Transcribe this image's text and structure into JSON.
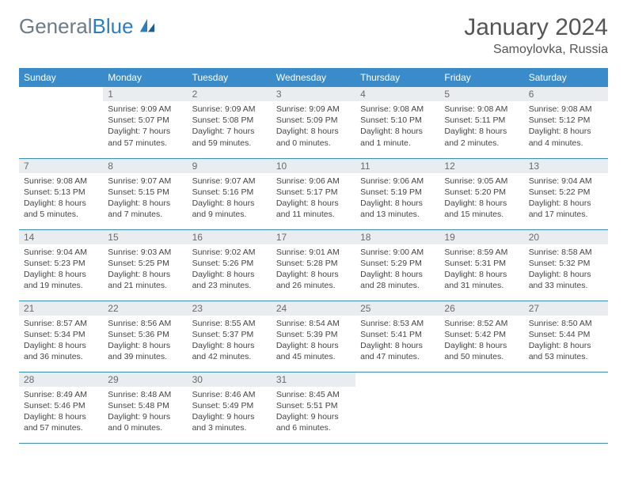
{
  "brand": {
    "general": "General",
    "blue": "Blue"
  },
  "title": {
    "month": "January 2024",
    "location": "Samoylovka, Russia"
  },
  "style": {
    "header_bg": "#3a8bc9",
    "header_fg": "#ffffff",
    "daynum_bg": "#e9edf0",
    "daynum_fg": "#6a6a6a",
    "border_color": "#3a8bc9",
    "body_bg": "#ffffff",
    "text_color": "#444",
    "title_color": "#555",
    "logo_gray": "#6b7b8a",
    "logo_blue": "#2b7fbf",
    "title_fontsize": 30,
    "location_fontsize": 16,
    "header_fontsize": 12,
    "daynum_fontsize": 12,
    "body_fontsize": 10.5
  },
  "weekdays": [
    "Sunday",
    "Monday",
    "Tuesday",
    "Wednesday",
    "Thursday",
    "Friday",
    "Saturday"
  ],
  "weeks": [
    [
      null,
      {
        "n": "1",
        "sunrise": "Sunrise: 9:09 AM",
        "sunset": "Sunset: 5:07 PM",
        "day1": "Daylight: 7 hours",
        "day2": "and 57 minutes."
      },
      {
        "n": "2",
        "sunrise": "Sunrise: 9:09 AM",
        "sunset": "Sunset: 5:08 PM",
        "day1": "Daylight: 7 hours",
        "day2": "and 59 minutes."
      },
      {
        "n": "3",
        "sunrise": "Sunrise: 9:09 AM",
        "sunset": "Sunset: 5:09 PM",
        "day1": "Daylight: 8 hours",
        "day2": "and 0 minutes."
      },
      {
        "n": "4",
        "sunrise": "Sunrise: 9:08 AM",
        "sunset": "Sunset: 5:10 PM",
        "day1": "Daylight: 8 hours",
        "day2": "and 1 minute."
      },
      {
        "n": "5",
        "sunrise": "Sunrise: 9:08 AM",
        "sunset": "Sunset: 5:11 PM",
        "day1": "Daylight: 8 hours",
        "day2": "and 2 minutes."
      },
      {
        "n": "6",
        "sunrise": "Sunrise: 9:08 AM",
        "sunset": "Sunset: 5:12 PM",
        "day1": "Daylight: 8 hours",
        "day2": "and 4 minutes."
      }
    ],
    [
      {
        "n": "7",
        "sunrise": "Sunrise: 9:08 AM",
        "sunset": "Sunset: 5:13 PM",
        "day1": "Daylight: 8 hours",
        "day2": "and 5 minutes."
      },
      {
        "n": "8",
        "sunrise": "Sunrise: 9:07 AM",
        "sunset": "Sunset: 5:15 PM",
        "day1": "Daylight: 8 hours",
        "day2": "and 7 minutes."
      },
      {
        "n": "9",
        "sunrise": "Sunrise: 9:07 AM",
        "sunset": "Sunset: 5:16 PM",
        "day1": "Daylight: 8 hours",
        "day2": "and 9 minutes."
      },
      {
        "n": "10",
        "sunrise": "Sunrise: 9:06 AM",
        "sunset": "Sunset: 5:17 PM",
        "day1": "Daylight: 8 hours",
        "day2": "and 11 minutes."
      },
      {
        "n": "11",
        "sunrise": "Sunrise: 9:06 AM",
        "sunset": "Sunset: 5:19 PM",
        "day1": "Daylight: 8 hours",
        "day2": "and 13 minutes."
      },
      {
        "n": "12",
        "sunrise": "Sunrise: 9:05 AM",
        "sunset": "Sunset: 5:20 PM",
        "day1": "Daylight: 8 hours",
        "day2": "and 15 minutes."
      },
      {
        "n": "13",
        "sunrise": "Sunrise: 9:04 AM",
        "sunset": "Sunset: 5:22 PM",
        "day1": "Daylight: 8 hours",
        "day2": "and 17 minutes."
      }
    ],
    [
      {
        "n": "14",
        "sunrise": "Sunrise: 9:04 AM",
        "sunset": "Sunset: 5:23 PM",
        "day1": "Daylight: 8 hours",
        "day2": "and 19 minutes."
      },
      {
        "n": "15",
        "sunrise": "Sunrise: 9:03 AM",
        "sunset": "Sunset: 5:25 PM",
        "day1": "Daylight: 8 hours",
        "day2": "and 21 minutes."
      },
      {
        "n": "16",
        "sunrise": "Sunrise: 9:02 AM",
        "sunset": "Sunset: 5:26 PM",
        "day1": "Daylight: 8 hours",
        "day2": "and 23 minutes."
      },
      {
        "n": "17",
        "sunrise": "Sunrise: 9:01 AM",
        "sunset": "Sunset: 5:28 PM",
        "day1": "Daylight: 8 hours",
        "day2": "and 26 minutes."
      },
      {
        "n": "18",
        "sunrise": "Sunrise: 9:00 AM",
        "sunset": "Sunset: 5:29 PM",
        "day1": "Daylight: 8 hours",
        "day2": "and 28 minutes."
      },
      {
        "n": "19",
        "sunrise": "Sunrise: 8:59 AM",
        "sunset": "Sunset: 5:31 PM",
        "day1": "Daylight: 8 hours",
        "day2": "and 31 minutes."
      },
      {
        "n": "20",
        "sunrise": "Sunrise: 8:58 AM",
        "sunset": "Sunset: 5:32 PM",
        "day1": "Daylight: 8 hours",
        "day2": "and 33 minutes."
      }
    ],
    [
      {
        "n": "21",
        "sunrise": "Sunrise: 8:57 AM",
        "sunset": "Sunset: 5:34 PM",
        "day1": "Daylight: 8 hours",
        "day2": "and 36 minutes."
      },
      {
        "n": "22",
        "sunrise": "Sunrise: 8:56 AM",
        "sunset": "Sunset: 5:36 PM",
        "day1": "Daylight: 8 hours",
        "day2": "and 39 minutes."
      },
      {
        "n": "23",
        "sunrise": "Sunrise: 8:55 AM",
        "sunset": "Sunset: 5:37 PM",
        "day1": "Daylight: 8 hours",
        "day2": "and 42 minutes."
      },
      {
        "n": "24",
        "sunrise": "Sunrise: 8:54 AM",
        "sunset": "Sunset: 5:39 PM",
        "day1": "Daylight: 8 hours",
        "day2": "and 45 minutes."
      },
      {
        "n": "25",
        "sunrise": "Sunrise: 8:53 AM",
        "sunset": "Sunset: 5:41 PM",
        "day1": "Daylight: 8 hours",
        "day2": "and 47 minutes."
      },
      {
        "n": "26",
        "sunrise": "Sunrise: 8:52 AM",
        "sunset": "Sunset: 5:42 PM",
        "day1": "Daylight: 8 hours",
        "day2": "and 50 minutes."
      },
      {
        "n": "27",
        "sunrise": "Sunrise: 8:50 AM",
        "sunset": "Sunset: 5:44 PM",
        "day1": "Daylight: 8 hours",
        "day2": "and 53 minutes."
      }
    ],
    [
      {
        "n": "28",
        "sunrise": "Sunrise: 8:49 AM",
        "sunset": "Sunset: 5:46 PM",
        "day1": "Daylight: 8 hours",
        "day2": "and 57 minutes."
      },
      {
        "n": "29",
        "sunrise": "Sunrise: 8:48 AM",
        "sunset": "Sunset: 5:48 PM",
        "day1": "Daylight: 9 hours",
        "day2": "and 0 minutes."
      },
      {
        "n": "30",
        "sunrise": "Sunrise: 8:46 AM",
        "sunset": "Sunset: 5:49 PM",
        "day1": "Daylight: 9 hours",
        "day2": "and 3 minutes."
      },
      {
        "n": "31",
        "sunrise": "Sunrise: 8:45 AM",
        "sunset": "Sunset: 5:51 PM",
        "day1": "Daylight: 9 hours",
        "day2": "and 6 minutes."
      },
      null,
      null,
      null
    ]
  ]
}
